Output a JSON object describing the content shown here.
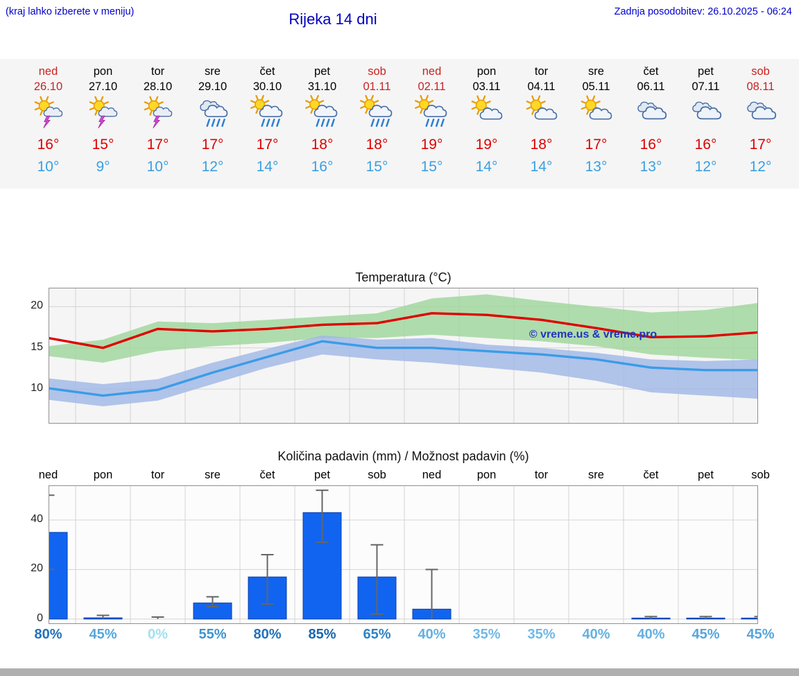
{
  "header": {
    "hint": "(kraj lahko izberete v meniju)",
    "title": "Rijeka 14 dni",
    "updated": "Zadnja posodobitev: 26.10.2025 - 06:24"
  },
  "colors": {
    "link_blue": "#0000cc",
    "high_red": "#dd0000",
    "low_blue": "#3a9fe0",
    "weekend_red": "#cc2222",
    "bar_blue": "#1164ef",
    "band_green": "#9ed69a",
    "band_blue": "#9fb6e6",
    "line_red": "#e00000",
    "line_blue": "#3a9ce8"
  },
  "forecast": {
    "days": [
      {
        "name": "ned",
        "date": "26.10",
        "weekend": true,
        "icon": "sun-storm",
        "high": "16°",
        "low": "10°"
      },
      {
        "name": "pon",
        "date": "27.10",
        "weekend": false,
        "icon": "sun-storm",
        "high": "15°",
        "low": "9°"
      },
      {
        "name": "tor",
        "date": "28.10",
        "weekend": false,
        "icon": "sun-storm",
        "high": "17°",
        "low": "10°"
      },
      {
        "name": "sre",
        "date": "29.10",
        "weekend": false,
        "icon": "rain",
        "high": "17°",
        "low": "12°"
      },
      {
        "name": "čet",
        "date": "30.10",
        "weekend": false,
        "icon": "sun-rain",
        "high": "17°",
        "low": "14°"
      },
      {
        "name": "pet",
        "date": "31.10",
        "weekend": false,
        "icon": "sun-rain",
        "high": "18°",
        "low": "16°"
      },
      {
        "name": "sob",
        "date": "01.11",
        "weekend": true,
        "icon": "sun-rain",
        "high": "18°",
        "low": "15°"
      },
      {
        "name": "ned",
        "date": "02.11",
        "weekend": true,
        "icon": "sun-rain",
        "high": "19°",
        "low": "15°"
      },
      {
        "name": "pon",
        "date": "03.11",
        "weekend": false,
        "icon": "sun-cloud",
        "high": "19°",
        "low": "14°"
      },
      {
        "name": "tor",
        "date": "04.11",
        "weekend": false,
        "icon": "sun-cloud",
        "high": "18°",
        "low": "14°"
      },
      {
        "name": "sre",
        "date": "05.11",
        "weekend": false,
        "icon": "sun-cloud",
        "high": "17°",
        "low": "13°"
      },
      {
        "name": "čet",
        "date": "06.11",
        "weekend": false,
        "icon": "cloud",
        "high": "16°",
        "low": "13°"
      },
      {
        "name": "pet",
        "date": "07.11",
        "weekend": false,
        "icon": "cloud",
        "high": "16°",
        "low": "12°"
      },
      {
        "name": "sob",
        "date": "08.11",
        "weekend": true,
        "icon": "cloud",
        "high": "17°",
        "low": "12°"
      }
    ]
  },
  "chart_data": [
    {
      "type": "line",
      "title": "Temperatura (°C)",
      "x_categories": [
        "ned 26.10",
        "pon 27.10",
        "tor 28.10",
        "sre 29.10",
        "čet 30.10",
        "pet 31.10",
        "sob 01.11",
        "ned 02.11",
        "pon 03.11",
        "tor 04.11",
        "sre 05.11",
        "čet 06.11",
        "pet 07.11",
        "sob 08.11"
      ],
      "ylim": [
        5.8,
        22.3
      ],
      "yticks": [
        10,
        15,
        20
      ],
      "grid": true,
      "annotation": "© vreme.us & vreme.pro",
      "series": [
        {
          "name": "max temperature",
          "color": "#e00000",
          "values": [
            16.2,
            15,
            17.3,
            17,
            17.3,
            17.8,
            18,
            19.2,
            19,
            18.4,
            17.4,
            16.3,
            16.4,
            16.9
          ]
        },
        {
          "name": "min temperature",
          "color": "#3a9ce8",
          "values": [
            10.1,
            9.2,
            9.9,
            12,
            13.9,
            15.8,
            15,
            15,
            14.6,
            14.2,
            13.6,
            12.6,
            12.3,
            12.3
          ]
        }
      ],
      "bands": [
        {
          "name": "max temperature range",
          "color": "#9ed69a",
          "upper": [
            15.2,
            16,
            18.2,
            18,
            18.4,
            18.8,
            19.2,
            21,
            21.5,
            20.7,
            20,
            19.3,
            19.6,
            20.5
          ],
          "lower": [
            14,
            13.2,
            14.6,
            15.2,
            15.6,
            16.2,
            16.2,
            16.6,
            16.2,
            15.8,
            15.2,
            14.2,
            13.8,
            13.5
          ]
        },
        {
          "name": "min temperature range",
          "color": "#9fb6e6",
          "upper": [
            11.3,
            10.6,
            11.2,
            13.2,
            14.9,
            16.5,
            16,
            16.2,
            15.4,
            15,
            14.4,
            13.6,
            13.4,
            13.6
          ],
          "lower": [
            8.7,
            7.9,
            8.6,
            10.6,
            12.6,
            14.2,
            13.6,
            13.2,
            12.6,
            12,
            11,
            9.6,
            9.2,
            8.8
          ]
        }
      ]
    },
    {
      "type": "bar",
      "title": "Količina padavin (mm) / Možnost padavin (%)",
      "categories": [
        "ned",
        "pon",
        "tor",
        "sre",
        "čet",
        "pet",
        "sob",
        "ned",
        "pon",
        "tor",
        "sre",
        "čet",
        "pet",
        "sob"
      ],
      "ylim": [
        -2,
        54
      ],
      "yticks": [
        0,
        20,
        40
      ],
      "values": [
        35,
        0.5,
        0,
        6.5,
        17,
        43,
        17,
        4,
        0,
        0,
        0,
        0.4,
        0.4,
        0.4
      ],
      "whisker_low": [
        20,
        0,
        0,
        5,
        6,
        31,
        2,
        0,
        0,
        0,
        0,
        0,
        0,
        0
      ],
      "whisker_high": [
        50,
        1.5,
        0.8,
        9,
        26,
        52,
        30,
        20,
        0,
        0,
        0,
        1,
        1,
        1
      ],
      "bar_color": "#1164ef",
      "probabilities": [
        {
          "label": "80%",
          "color": "#2371bb"
        },
        {
          "label": "45%",
          "color": "#56a6db"
        },
        {
          "label": "0%",
          "color": "#9fe1ef"
        },
        {
          "label": "55%",
          "color": "#3f93d0"
        },
        {
          "label": "80%",
          "color": "#2371bb"
        },
        {
          "label": "85%",
          "color": "#1a65ad"
        },
        {
          "label": "65%",
          "color": "#2f83c4"
        },
        {
          "label": "40%",
          "color": "#63b1e2"
        },
        {
          "label": "35%",
          "color": "#70b9e6"
        },
        {
          "label": "35%",
          "color": "#70b9e6"
        },
        {
          "label": "40%",
          "color": "#63b1e2"
        },
        {
          "label": "40%",
          "color": "#63b1e2"
        },
        {
          "label": "45%",
          "color": "#56a6db"
        },
        {
          "label": "45%",
          "color": "#56a6db"
        }
      ]
    }
  ]
}
